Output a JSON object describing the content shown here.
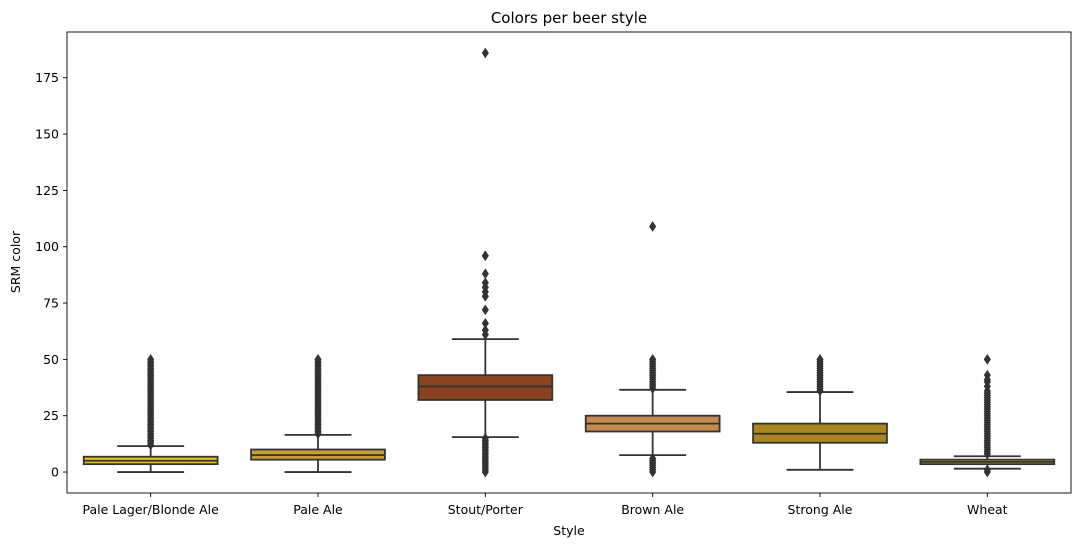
{
  "chart_data": {
    "type": "box",
    "title": "Colors per beer style",
    "xlabel": "Style",
    "ylabel": "SRM color",
    "ylim": [
      -9.3,
      195.3
    ],
    "yticks": [
      0,
      25,
      50,
      75,
      100,
      125,
      150,
      175
    ],
    "grid": false,
    "legend": "none",
    "categories": [
      "Pale Lager/Blonde Ale",
      "Pale Ale",
      "Stout/Porter",
      "Brown Ale",
      "Strong Ale",
      "Wheat"
    ],
    "series": [
      {
        "category": "Pale Lager/Blonde Ale",
        "color": "#e2c120",
        "whisker_low": 0,
        "q1": 3.5,
        "median": 5,
        "q3": 6.8,
        "whisker_high": 11.5,
        "outliers": [
          12,
          13,
          14,
          15,
          16,
          17,
          18,
          19,
          20,
          21,
          22,
          23,
          24,
          25,
          26,
          27,
          28,
          29,
          30,
          31,
          32,
          33,
          34,
          35,
          36,
          37,
          38,
          39,
          40,
          41,
          42,
          43,
          44,
          45,
          46,
          47,
          48,
          49,
          50
        ]
      },
      {
        "category": "Pale Ale",
        "color": "#cb9d36",
        "whisker_low": 0,
        "q1": 5.5,
        "median": 7.5,
        "q3": 10,
        "whisker_high": 16.5,
        "outliers": [
          17,
          18,
          19,
          20,
          21,
          22,
          23,
          24,
          25,
          26,
          27,
          28,
          29,
          30,
          31,
          32,
          33,
          34,
          35,
          36,
          37,
          38,
          39,
          40,
          41,
          42,
          43,
          44,
          45,
          46,
          47,
          48,
          49,
          50
        ]
      },
      {
        "category": "Stout/Porter",
        "color": "#8b4220",
        "whisker_low": 15.5,
        "q1": 32,
        "median": 38,
        "q3": 43,
        "whisker_high": 59,
        "outliers": [
          0,
          1,
          2,
          3,
          4,
          5,
          6,
          7,
          8,
          9,
          10,
          11,
          12,
          13,
          14,
          15,
          61,
          63,
          66,
          72,
          78,
          80,
          82,
          84,
          88,
          96,
          186
        ]
      },
      {
        "category": "Brown Ale",
        "color": "#c48a4e",
        "whisker_low": 7.5,
        "q1": 18,
        "median": 21.5,
        "q3": 25,
        "whisker_high": 36.5,
        "outliers": [
          0,
          1,
          2,
          3,
          4,
          5,
          6,
          37,
          38,
          39,
          40,
          41,
          42,
          43,
          44,
          45,
          46,
          47,
          48,
          49,
          50,
          109
        ]
      },
      {
        "category": "Strong Ale",
        "color": "#a98620",
        "whisker_low": 1,
        "q1": 13,
        "median": 17,
        "q3": 21.5,
        "whisker_high": 35.5,
        "outliers": [
          36,
          37,
          38,
          39,
          40,
          41,
          42,
          43,
          44,
          45,
          46,
          47,
          48,
          49,
          50
        ]
      },
      {
        "category": "Wheat",
        "color": "#c9ab2c",
        "whisker_low": 1.5,
        "q1": 3.5,
        "median": 4.5,
        "q3": 5.5,
        "whisker_high": 7,
        "outliers": [
          0,
          1,
          8,
          9,
          10,
          11,
          12,
          13,
          14,
          15,
          16,
          17,
          18,
          19,
          20,
          21,
          22,
          23,
          24,
          25,
          26,
          27,
          28,
          29,
          30,
          31,
          32,
          33,
          34,
          35,
          36,
          38,
          40,
          41,
          43,
          50
        ]
      }
    ]
  }
}
